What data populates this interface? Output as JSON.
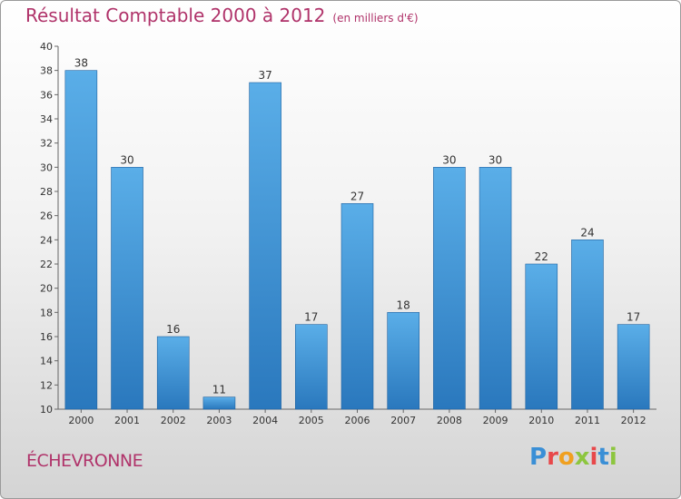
{
  "header": {
    "title": "Résultat Comptable 2000 à 2012",
    "subtitle": "(en milliers d'€)"
  },
  "footer": {
    "place": "ÉCHEVRONNE",
    "brand_logo": "Proxiti"
  },
  "colors": {
    "title": "#b0336a",
    "bar_top": "#5aaee8",
    "bar_bottom": "#2a78bd",
    "bar_edge": "#1f62a0"
  },
  "chart_data": {
    "type": "bar",
    "categories": [
      "2000",
      "2001",
      "2002",
      "2003",
      "2004",
      "2005",
      "2006",
      "2007",
      "2008",
      "2009",
      "2010",
      "2011",
      "2012"
    ],
    "values": [
      38,
      30,
      16,
      11,
      37,
      17,
      27,
      18,
      30,
      30,
      22,
      24,
      17
    ],
    "data_labels": [
      "38",
      "30",
      "16",
      "11",
      "37",
      "17",
      "27",
      "18",
      "30",
      "30",
      "22",
      "24",
      "17"
    ],
    "y_ticks": [
      "10",
      "12",
      "14",
      "16",
      "18",
      "20",
      "22",
      "24",
      "26",
      "28",
      "30",
      "32",
      "34",
      "36",
      "38",
      "40"
    ],
    "ylim": [
      10,
      40
    ],
    "grid": false,
    "legend": "none"
  }
}
